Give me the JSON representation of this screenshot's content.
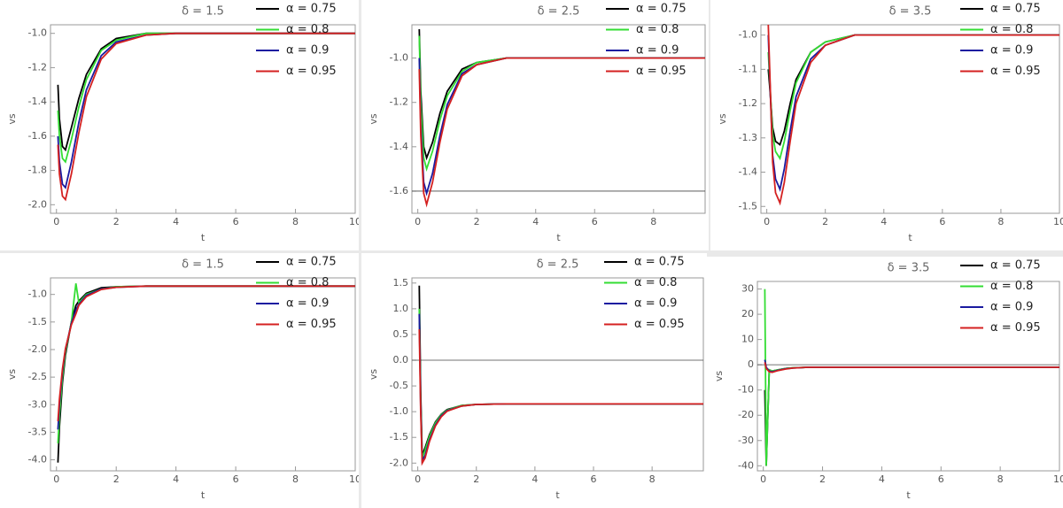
{
  "chart_data": [
    {
      "type": "line",
      "title": "δ = 1.5",
      "xlabel": "t",
      "ylabel": "vs",
      "x": [
        0.05,
        0.1,
        0.2,
        0.3,
        0.5,
        0.75,
        1,
        1.5,
        2,
        3,
        4,
        6,
        8,
        10
      ],
      "xlim": [
        -0.2,
        10
      ],
      "xticks": [
        0,
        2,
        4,
        6,
        8,
        10
      ],
      "ylim": [
        -2.05,
        -0.95
      ],
      "yticks": [
        {
          "value": -2,
          "label": "-2.0"
        },
        {
          "value": -1.8,
          "label": "-1.8"
        },
        {
          "value": -1.6,
          "label": "-1.6"
        },
        {
          "value": -1.4,
          "label": "-1.4"
        },
        {
          "value": -1.2,
          "label": "-1.2"
        },
        {
          "value": -1,
          "label": "-1.0"
        }
      ],
      "series": [
        {
          "name": "α = 0.75",
          "color": "#000000",
          "values": [
            -1.3,
            -1.5,
            -1.66,
            -1.68,
            -1.55,
            -1.38,
            -1.24,
            -1.09,
            -1.03,
            -1.0,
            -1.0,
            -1.0,
            -1.0,
            -1.0
          ]
        },
        {
          "name": "α = 0.8",
          "color": "#33dd33",
          "values": [
            -1.45,
            -1.6,
            -1.73,
            -1.75,
            -1.62,
            -1.43,
            -1.27,
            -1.1,
            -1.04,
            -1.0,
            -1.0,
            -1.0,
            -1.0,
            -1.0
          ]
        },
        {
          "name": "α = 0.9",
          "color": "#1a1aa0",
          "values": [
            -1.6,
            -1.75,
            -1.88,
            -1.9,
            -1.75,
            -1.52,
            -1.33,
            -1.13,
            -1.05,
            -1.01,
            -1.0,
            -1.0,
            -1.0,
            -1.0
          ]
        },
        {
          "name": "α = 0.95",
          "color": "#d42020",
          "values": [
            -1.65,
            -1.82,
            -1.95,
            -1.97,
            -1.82,
            -1.58,
            -1.37,
            -1.15,
            -1.06,
            -1.01,
            -1.0,
            -1.0,
            -1.0,
            -1.0
          ]
        }
      ]
    },
    {
      "type": "line",
      "title": "δ = 2.5",
      "xlabel": "t",
      "ylabel": "vs",
      "x": [
        0.05,
        0.1,
        0.2,
        0.3,
        0.5,
        0.75,
        1,
        1.5,
        2,
        3,
        4,
        6,
        8,
        9.75
      ],
      "xlim": [
        -0.2,
        9.75
      ],
      "xticks": [
        0,
        2,
        4,
        6,
        8
      ],
      "ylim": [
        -1.7,
        -0.85
      ],
      "hline": -1.6,
      "yticks": [
        {
          "value": -1.6,
          "label": "-1.6"
        },
        {
          "value": -1.4,
          "label": "-1.4"
        },
        {
          "value": -1.2,
          "label": "-1.2"
        },
        {
          "value": -1,
          "label": "-1.0"
        }
      ],
      "series": [
        {
          "name": "α = 0.75",
          "color": "#000000",
          "values": [
            -0.87,
            -1.15,
            -1.4,
            -1.45,
            -1.38,
            -1.25,
            -1.15,
            -1.05,
            -1.02,
            -1.0,
            -1.0,
            -1.0,
            -1.0,
            -1.0
          ]
        },
        {
          "name": "α = 0.8",
          "color": "#33dd33",
          "values": [
            -0.9,
            -1.2,
            -1.45,
            -1.5,
            -1.42,
            -1.28,
            -1.17,
            -1.06,
            -1.02,
            -1.0,
            -1.0,
            -1.0,
            -1.0,
            -1.0
          ]
        },
        {
          "name": "α = 0.9",
          "color": "#1a1aa0",
          "values": [
            -1.0,
            -1.3,
            -1.56,
            -1.61,
            -1.52,
            -1.35,
            -1.21,
            -1.07,
            -1.03,
            -1.0,
            -1.0,
            -1.0,
            -1.0,
            -1.0
          ]
        },
        {
          "name": "α = 0.95",
          "color": "#d42020",
          "values": [
            -1.05,
            -1.35,
            -1.61,
            -1.66,
            -1.56,
            -1.38,
            -1.23,
            -1.08,
            -1.03,
            -1.0,
            -1.0,
            -1.0,
            -1.0,
            -1.0
          ]
        }
      ]
    },
    {
      "type": "line",
      "title": "δ = 3.5",
      "xlabel": "t",
      "ylabel": "vs",
      "x": [
        0.05,
        0.1,
        0.2,
        0.3,
        0.45,
        0.6,
        0.8,
        1,
        1.5,
        2,
        3,
        4,
        6,
        8,
        10
      ],
      "xlim": [
        -0.2,
        10
      ],
      "xticks": [
        0,
        2,
        4,
        6,
        8,
        10
      ],
      "ylim": [
        -1.52,
        -0.97
      ],
      "yticks": [
        {
          "value": -1.5,
          "label": "-1.5"
        },
        {
          "value": -1.4,
          "label": "-1.4"
        },
        {
          "value": -1.3,
          "label": "-1.3"
        },
        {
          "value": -1.2,
          "label": "-1.2"
        },
        {
          "value": -1.1,
          "label": "-1.1"
        },
        {
          "value": -1,
          "label": "-1.0"
        }
      ],
      "series": [
        {
          "name": "α = 0.75",
          "color": "#000000",
          "values": [
            -1.1,
            -1.15,
            -1.27,
            -1.31,
            -1.32,
            -1.28,
            -1.2,
            -1.13,
            -1.05,
            -1.02,
            -1.0,
            -1.0,
            -1.0,
            -1.0,
            -1.0
          ]
        },
        {
          "name": "α = 0.8",
          "color": "#33dd33",
          "values": [
            -1.05,
            -1.13,
            -1.29,
            -1.34,
            -1.36,
            -1.31,
            -1.22,
            -1.14,
            -1.05,
            -1.02,
            -1.0,
            -1.0,
            -1.0,
            -1.0,
            -1.0
          ]
        },
        {
          "name": "α = 0.9",
          "color": "#1a1aa0",
          "values": [
            -1.0,
            -1.12,
            -1.35,
            -1.42,
            -1.45,
            -1.39,
            -1.28,
            -1.18,
            -1.07,
            -1.03,
            -1.0,
            -1.0,
            -1.0,
            -1.0,
            -1.0
          ]
        },
        {
          "name": "α = 0.95",
          "color": "#d42020",
          "values": [
            -0.97,
            -1.1,
            -1.37,
            -1.46,
            -1.49,
            -1.43,
            -1.31,
            -1.2,
            -1.08,
            -1.03,
            -1.0,
            -1.0,
            -1.0,
            -1.0,
            -1.0
          ]
        }
      ]
    },
    {
      "type": "line",
      "title": "δ = 1.5",
      "xlabel": "t",
      "ylabel": "vs",
      "x": [
        0.05,
        0.1,
        0.2,
        0.3,
        0.5,
        0.65,
        0.75,
        1,
        1.5,
        2,
        3,
        4,
        6,
        8,
        10
      ],
      "xlim": [
        -0.2,
        10
      ],
      "xticks": [
        0,
        2,
        4,
        6,
        8,
        10
      ],
      "ylim": [
        -4.2,
        -0.7
      ],
      "yticks": [
        {
          "value": -4,
          "label": "-4.0"
        },
        {
          "value": -3.5,
          "label": "-3.5"
        },
        {
          "value": -3,
          "label": "-3.0"
        },
        {
          "value": -2.5,
          "label": "-2.5"
        },
        {
          "value": -2,
          "label": "-2.0"
        },
        {
          "value": -1.5,
          "label": "-1.5"
        },
        {
          "value": -1,
          "label": "-1.0"
        }
      ],
      "series": [
        {
          "name": "α = 0.75",
          "color": "#000000",
          "values": [
            -4.05,
            -3.4,
            -2.6,
            -2.1,
            -1.5,
            -1.2,
            -1.12,
            -0.98,
            -0.88,
            -0.86,
            -0.85,
            -0.85,
            -0.85,
            -0.85,
            -0.85
          ]
        },
        {
          "name": "α = 0.8",
          "color": "#33dd33",
          "values": [
            -3.7,
            -3.2,
            -2.5,
            -2.05,
            -1.5,
            -0.8,
            -1.15,
            -1.0,
            -0.9,
            -0.86,
            -0.85,
            -0.85,
            -0.85,
            -0.85,
            -0.85
          ]
        },
        {
          "name": "α = 0.9",
          "color": "#1a1aa0",
          "values": [
            -3.45,
            -3.0,
            -2.4,
            -2.0,
            -1.52,
            -1.28,
            -1.18,
            -1.02,
            -0.9,
            -0.87,
            -0.85,
            -0.85,
            -0.85,
            -0.85,
            -0.85
          ]
        },
        {
          "name": "α = 0.95",
          "color": "#d42020",
          "values": [
            -3.3,
            -2.9,
            -2.35,
            -1.98,
            -1.55,
            -1.35,
            -1.2,
            -1.04,
            -0.91,
            -0.87,
            -0.85,
            -0.85,
            -0.85,
            -0.85,
            -0.85
          ]
        }
      ]
    },
    {
      "type": "line",
      "title": "δ = 2.5",
      "xlabel": "t",
      "ylabel": "vs",
      "x": [
        0.05,
        0.1,
        0.15,
        0.25,
        0.4,
        0.6,
        0.8,
        1,
        1.5,
        2,
        3,
        4,
        6,
        8,
        9.75
      ],
      "xlim": [
        -0.2,
        9.75
      ],
      "xticks": [
        0,
        2,
        4,
        6,
        8
      ],
      "ylim": [
        -2.15,
        1.6
      ],
      "hline": 0,
      "yticks": [
        {
          "value": -2,
          "label": "-2.0"
        },
        {
          "value": -1.5,
          "label": "-1.5"
        },
        {
          "value": -1,
          "label": "-1.0"
        },
        {
          "value": -0.5,
          "label": "-0.5"
        },
        {
          "value": 0,
          "label": "0.0"
        },
        {
          "value": 0.5,
          "label": "0.5"
        },
        {
          "value": 1,
          "label": "1.0"
        },
        {
          "value": 1.5,
          "label": "1.5"
        }
      ],
      "series": [
        {
          "name": "α = 0.75",
          "color": "#000000",
          "values": [
            1.45,
            -0.6,
            -1.85,
            -1.7,
            -1.45,
            -1.2,
            -1.05,
            -0.96,
            -0.88,
            -0.86,
            -0.85,
            -0.85,
            -0.85,
            -0.85,
            -0.85
          ]
        },
        {
          "name": "α = 0.8",
          "color": "#33dd33",
          "values": [
            1.0,
            -0.8,
            -1.9,
            -1.75,
            -1.48,
            -1.22,
            -1.06,
            -0.97,
            -0.88,
            -0.86,
            -0.85,
            -0.85,
            -0.85,
            -0.85,
            -0.85
          ]
        },
        {
          "name": "α = 0.9",
          "color": "#1a1aa0",
          "values": [
            0.9,
            -0.9,
            -1.95,
            -1.85,
            -1.55,
            -1.26,
            -1.08,
            -0.98,
            -0.89,
            -0.86,
            -0.85,
            -0.85,
            -0.85,
            -0.85,
            -0.85
          ]
        },
        {
          "name": "α = 0.95",
          "color": "#d42020",
          "values": [
            0.6,
            -1.0,
            -2.0,
            -1.9,
            -1.58,
            -1.28,
            -1.1,
            -0.99,
            -0.89,
            -0.86,
            -0.85,
            -0.85,
            -0.85,
            -0.85,
            -0.85
          ]
        }
      ]
    },
    {
      "type": "line",
      "title": "δ = 3.5",
      "xlabel": "t",
      "ylabel": "vs",
      "x": [
        0.05,
        0.1,
        0.2,
        0.3,
        0.5,
        0.75,
        1,
        1.5,
        2,
        3,
        4,
        6,
        8,
        10
      ],
      "xlim": [
        -0.2,
        10
      ],
      "xticks": [
        0,
        2,
        4,
        6,
        8,
        10
      ],
      "ylim": [
        -42,
        33
      ],
      "hline": 0,
      "yticks": [
        -40,
        -30,
        -20,
        -10,
        0,
        10,
        20,
        30
      ],
      "series": [
        {
          "name": "α = 0.75",
          "color": "#000000",
          "values": [
            -10,
            -40,
            -2,
            -2.5,
            -2,
            -1.5,
            -1.2,
            -1,
            -1,
            -1,
            -1,
            -1,
            -1,
            -1
          ]
        },
        {
          "name": "α = 0.8",
          "color": "#33dd33",
          "values": [
            30,
            -40,
            -2,
            -2.5,
            -2,
            -1.5,
            -1.2,
            -1,
            -1,
            -1,
            -1,
            -1,
            -1,
            -1
          ]
        },
        {
          "name": "α = 0.9",
          "color": "#1a1aa0",
          "values": [
            2,
            -1,
            -2.5,
            -2.8,
            -2.2,
            -1.6,
            -1.3,
            -1,
            -1,
            -1,
            -1,
            -1,
            -1,
            -1
          ]
        },
        {
          "name": "α = 0.95",
          "color": "#d42020",
          "values": [
            1,
            -1.5,
            -2.8,
            -3,
            -2.3,
            -1.7,
            -1.3,
            -1,
            -1,
            -1,
            -1,
            -1,
            -1,
            -1
          ]
        }
      ]
    }
  ]
}
